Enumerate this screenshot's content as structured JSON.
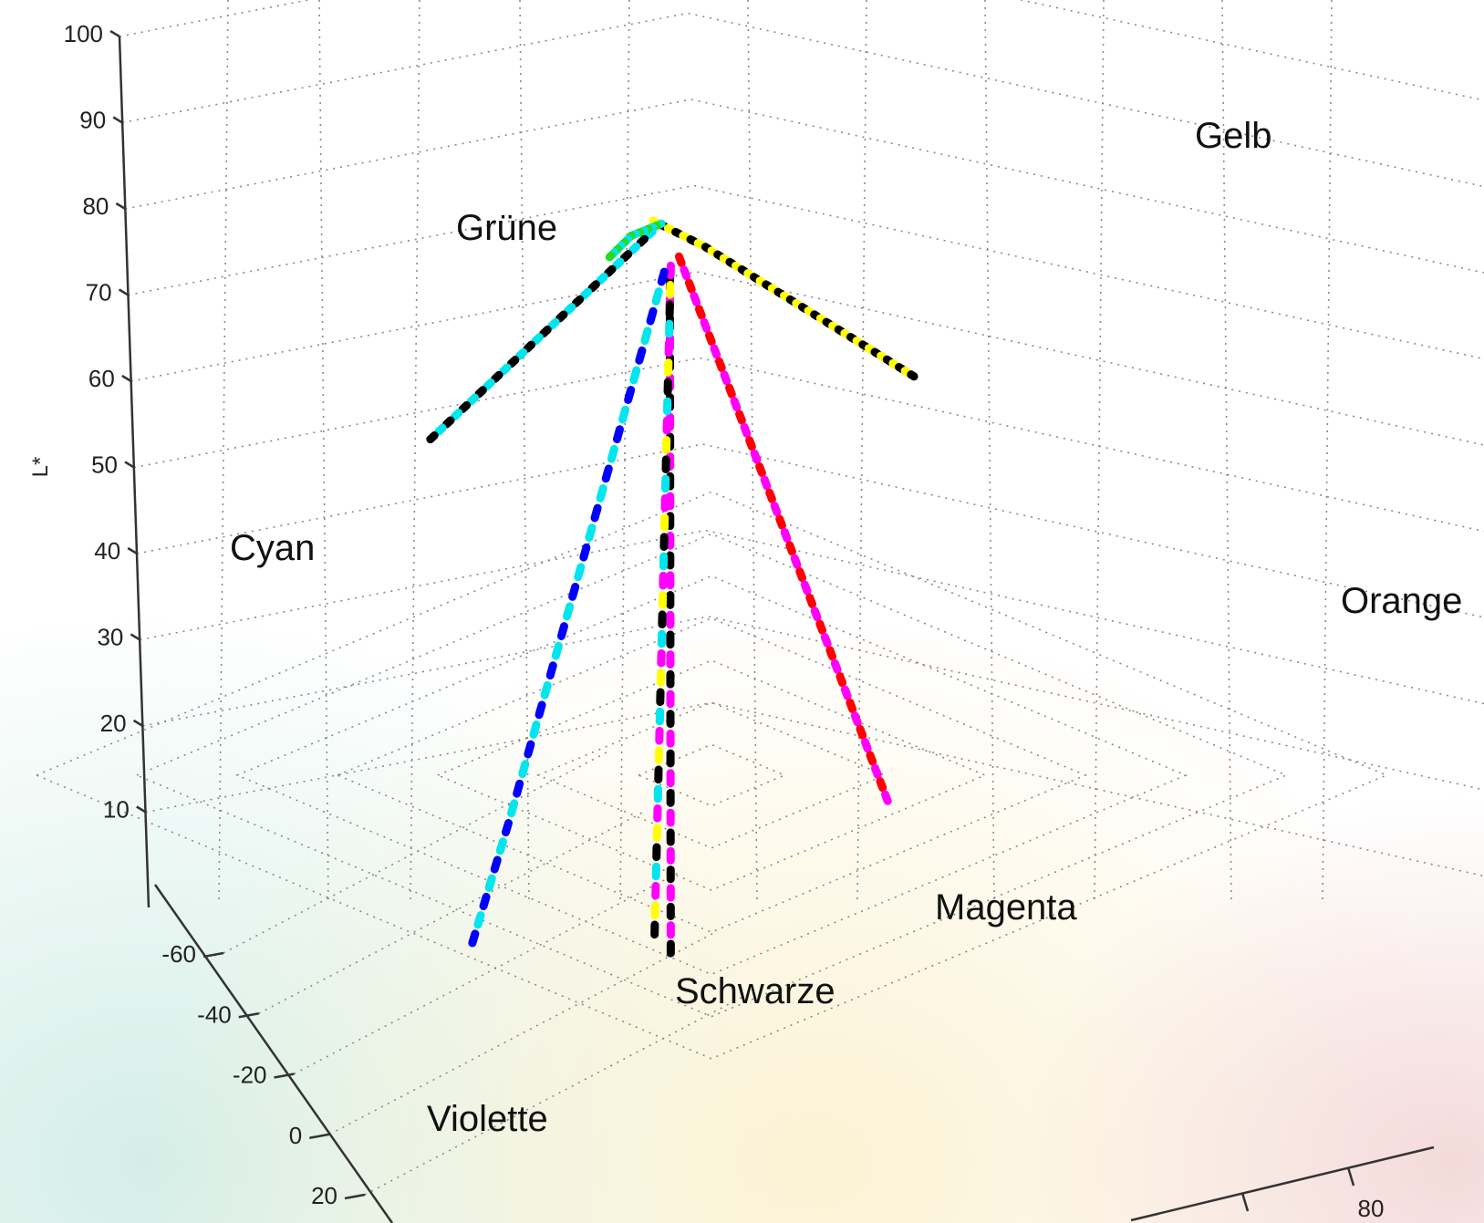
{
  "chart_data": {
    "type": "scatter",
    "projection": "3d",
    "title": "",
    "zlabel": "L*",
    "z_ticks": [
      10,
      20,
      30,
      40,
      50,
      60,
      70,
      80,
      90,
      100
    ],
    "y_ticks": [
      -60,
      -40,
      -20,
      0,
      20
    ],
    "x_ticks": [
      80
    ],
    "zlim": [
      0,
      100
    ],
    "grid": true,
    "background_colors": [
      "#d8f0ea",
      "#fbf3d8",
      "#f5dede"
    ],
    "origin": {
      "a": 0,
      "b": 0,
      "L": 80
    },
    "series": [
      {
        "name": "Gelb",
        "colors": [
          "#ffff00",
          "#000000"
        ],
        "points": [
          [
            -4,
            4,
            80
          ],
          [
            14,
            18,
            80
          ],
          [
            30,
            34,
            80
          ],
          [
            46,
            50,
            80
          ],
          [
            62,
            66,
            80
          ],
          [
            78,
            82,
            80
          ],
          [
            94,
            98,
            80
          ]
        ]
      },
      {
        "name": "Orange",
        "colors": [
          "#ff0000",
          "#ff00ff"
        ],
        "points": [
          [
            4,
            8,
            77
          ],
          [
            20,
            30,
            70
          ],
          [
            36,
            52,
            63
          ],
          [
            52,
            74,
            56
          ],
          [
            68,
            96,
            49
          ],
          [
            84,
            118,
            42
          ],
          [
            100,
            140,
            35
          ]
        ]
      },
      {
        "name": "Magenta",
        "colors": [
          "#000000",
          "#ff00ff"
        ],
        "points": [
          [
            1,
            6,
            74
          ],
          [
            6,
            22,
            60
          ],
          [
            11,
            38,
            46
          ],
          [
            16,
            54,
            32
          ],
          [
            21,
            70,
            18
          ],
          [
            26,
            86,
            5
          ]
        ]
      },
      {
        "name": "Schwarze",
        "colors": [
          "#ff00ff",
          "#ffff00",
          "#000000",
          "#00e5ee"
        ],
        "points": [
          [
            0,
            2,
            75
          ],
          [
            1,
            8,
            60
          ],
          [
            2,
            14,
            45
          ],
          [
            3,
            20,
            30
          ],
          [
            4,
            26,
            15
          ],
          [
            5,
            32,
            0
          ]
        ]
      },
      {
        "name": "Violette",
        "colors": [
          "#0000ff",
          "#00e5ee"
        ],
        "points": [
          [
            -2,
            1,
            74
          ],
          [
            -10,
            8,
            58
          ],
          [
            -18,
            15,
            42
          ],
          [
            -26,
            22,
            26
          ],
          [
            -34,
            29,
            10
          ],
          [
            -42,
            36,
            -5
          ]
        ]
      },
      {
        "name": "Cyan",
        "colors": [
          "#00e5ee",
          "#000000"
        ],
        "points": [
          [
            -6,
            -2,
            78
          ],
          [
            -22,
            -6,
            70
          ],
          [
            -38,
            -10,
            62
          ],
          [
            -54,
            -14,
            54
          ],
          [
            -70,
            -18,
            46
          ]
        ]
      },
      {
        "name": "Grüne",
        "colors": [
          "#00e5ee",
          "#22dd22"
        ],
        "points": [
          [
            -4,
            -3,
            79
          ],
          [
            -14,
            -10,
            76
          ],
          [
            -22,
            -16,
            72
          ]
        ]
      }
    ],
    "labels": [
      {
        "text": "Gelb",
        "series": "Gelb"
      },
      {
        "text": "Grüne",
        "series": "Grüne"
      },
      {
        "text": "Cyan",
        "series": "Cyan"
      },
      {
        "text": "Orange",
        "series": "Orange"
      },
      {
        "text": "Magenta",
        "series": "Magenta"
      },
      {
        "text": "Schwarze",
        "series": "Schwarze"
      },
      {
        "text": "Violette",
        "series": "Violette"
      }
    ]
  }
}
